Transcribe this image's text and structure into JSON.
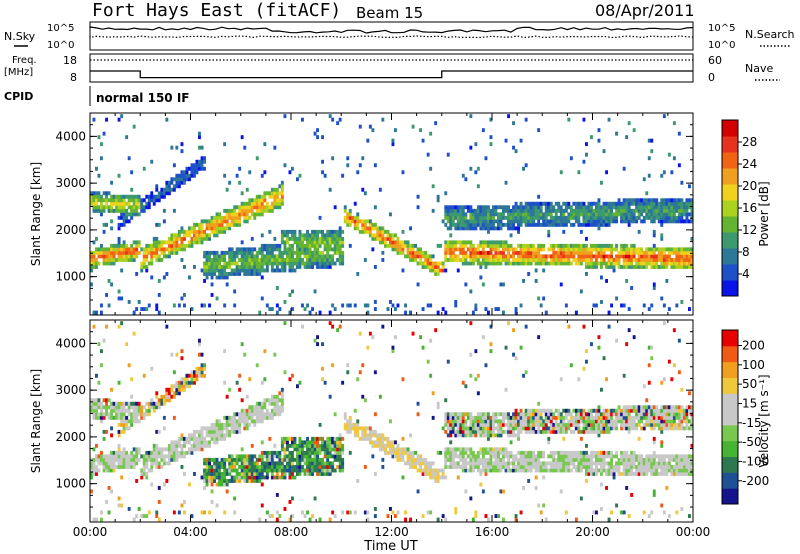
{
  "header": {
    "title": "Fort Hays East (fitACF)",
    "beam": "Beam 15",
    "date": "08/Apr/2011"
  },
  "labels": {
    "nsky": "N.Sky",
    "nsearch": "N.Search",
    "freq_line1": "Freq.",
    "freq_line2": "[MHz]",
    "nave": "Nave",
    "cpid": "CPID",
    "cpid_value": "normal 150 IF",
    "noise_tick_high": "10^5",
    "noise_tick_low": "10^0",
    "freq_tick_high": "18",
    "freq_tick_low": "8",
    "nave_tick_high": "60",
    "nave_tick_low": "0"
  },
  "colors": {
    "power_scale": [
      "#0a14e6",
      "#1e50c8",
      "#2d7896",
      "#3c9a6e",
      "#64b432",
      "#aad21e",
      "#f0d21e",
      "#f0a01e",
      "#f06414",
      "#e6321e",
      "#d20000"
    ],
    "velocity_scale": [
      "#e60000",
      "#f05a14",
      "#f0a01e",
      "#f0c83c",
      "#c8c8c8",
      "#c8c8c8",
      "#78c850",
      "#46b432",
      "#2d7850",
      "#1e5096",
      "#14148c"
    ]
  },
  "chart_data": [
    {
      "type": "line",
      "name": "noise-panel",
      "series": [
        {
          "name": "N.Sky"
        },
        {
          "name": "N.Search"
        }
      ],
      "yticks": [
        "10^5",
        "10^0"
      ]
    },
    {
      "type": "line",
      "name": "freq-panel",
      "ylabel": "Freq. [MHz]",
      "y2label": "Nave",
      "yticks": [
        18,
        8
      ],
      "y2ticks": [
        60,
        0
      ],
      "freq_steps": [
        {
          "t": 0.0,
          "v": 13.0
        },
        {
          "t": 2.0,
          "v": 10.0
        },
        {
          "t": 14.0,
          "v": 13.0
        },
        {
          "t": 24.0,
          "v": 13.0
        }
      ]
    },
    {
      "type": "heatmap",
      "name": "power",
      "ylabel": "Slant Range [km]",
      "ylim": [
        180,
        4500
      ],
      "yticks": [
        1000,
        2000,
        3000,
        4000
      ],
      "colorbar_label": "Power [dB]",
      "colorbar_ticks": [
        4,
        8,
        12,
        16,
        20,
        24,
        28
      ],
      "colorbar_range": [
        0,
        32
      ],
      "xlim": [
        0,
        24
      ],
      "xticks": [
        "00:00",
        "04:00",
        "08:00",
        "12:00",
        "16:00",
        "20:00",
        "00:00"
      ]
    },
    {
      "type": "heatmap",
      "name": "velocity",
      "ylabel": "Slant Range [km]",
      "xlabel": "Time UT",
      "ylim": [
        180,
        4500
      ],
      "yticks": [
        1000,
        2000,
        3000,
        4000
      ],
      "colorbar_label": "Velocity [m s⁻¹]",
      "colorbar_ticks": [
        200,
        100,
        50,
        15,
        -15,
        -50,
        -100,
        -200
      ],
      "xlim": [
        0,
        24
      ],
      "xticks": [
        "00:00",
        "04:00",
        "08:00",
        "12:00",
        "16:00",
        "20:00",
        "00:00"
      ]
    }
  ]
}
